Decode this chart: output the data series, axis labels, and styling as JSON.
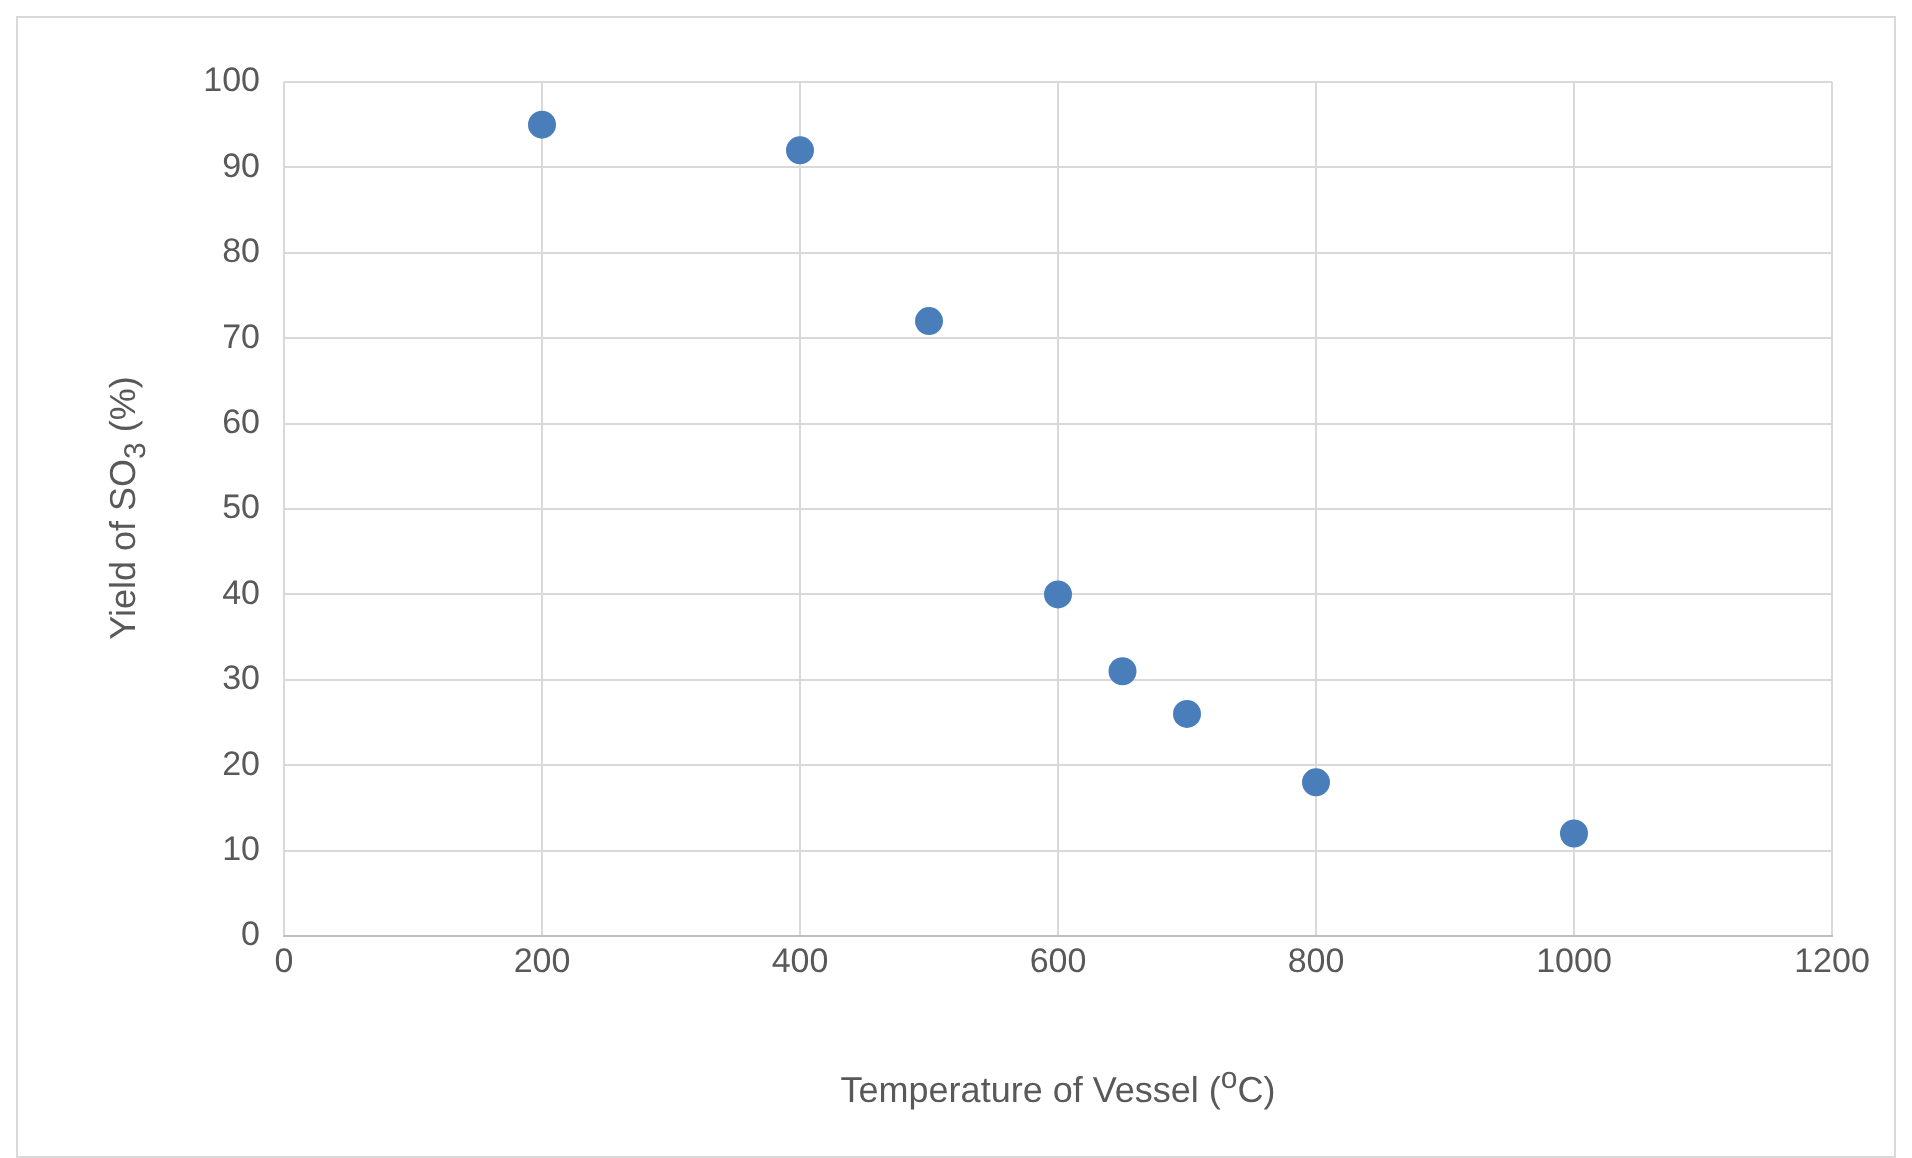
{
  "chart_data": {
    "type": "scatter",
    "xlabel": "Temperature of Vessel ($^{o}$C)",
    "ylabel": "Yield of SO$_{3}$ (%)",
    "x": [
      200,
      400,
      500,
      600,
      650,
      700,
      800,
      1000
    ],
    "series": [
      {
        "color": "#4a7ebb",
        "values": [
          95,
          92,
          72,
          40,
          31,
          26,
          18,
          12
        ]
      }
    ],
    "xlim": [
      0,
      1200
    ],
    "xticks": [
      0,
      200,
      400,
      600,
      800,
      1000,
      1200
    ],
    "ylim": [
      0,
      100
    ],
    "yticks": [
      0,
      10,
      20,
      30,
      40,
      50,
      60,
      70,
      80,
      90,
      100
    ],
    "grid": true,
    "legend": false,
    "marker": "circle"
  }
}
